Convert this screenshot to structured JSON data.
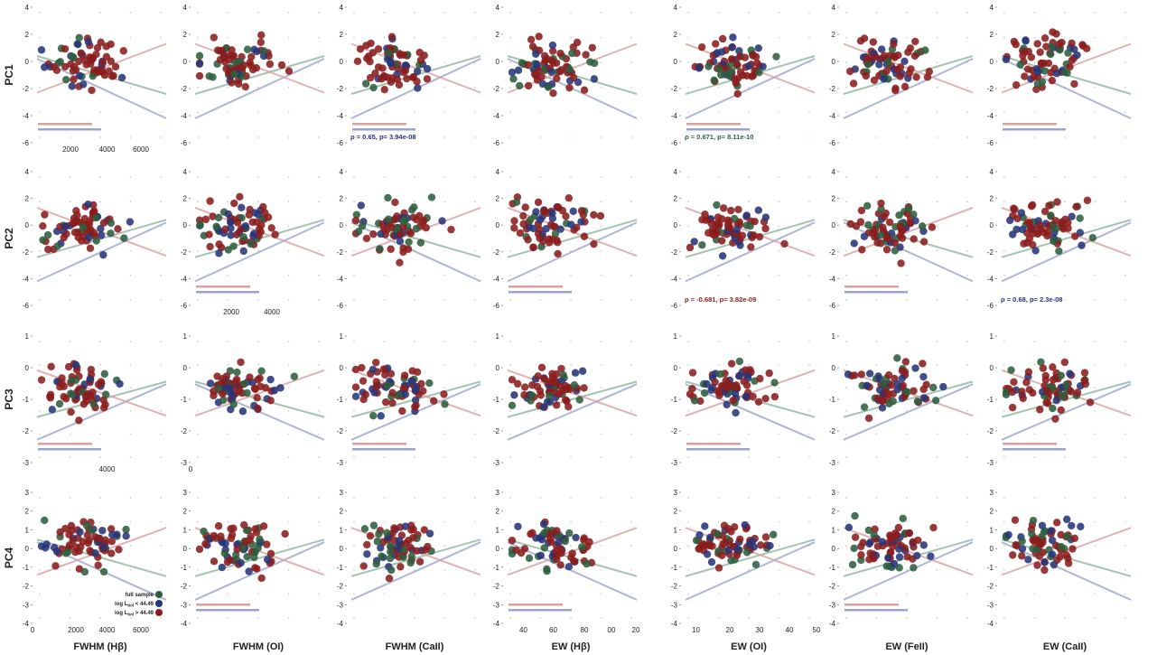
{
  "colors": {
    "full": "#2e5e3e",
    "low": "#28357a",
    "high": "#8b1c1c",
    "full_light": "#8fb5a0",
    "low_light": "#9aa5cc",
    "high_light": "#d9a0a0"
  },
  "legend": {
    "full": "full sample",
    "low": "log L",
    "low_sub": "bol",
    "low_suffix": " < 44.49",
    "high": "log L",
    "high_sub": "bol",
    "high_suffix": " > 44.49"
  },
  "chart_data": {
    "type": "scatter",
    "rows": [
      "PC1",
      "PC2",
      "PC3",
      "PC4"
    ],
    "columns": [
      "FWHM (Hβ)",
      "FWHM (OI)",
      "FWHM (CaII)",
      "EW (Hβ)",
      "EW (OI)",
      "EW (FeII)",
      "EW (CaII)"
    ],
    "row_yticks": [
      [
        "4",
        "2",
        "0",
        "-2",
        "-4",
        "-6"
      ],
      [
        "4",
        "2",
        "0",
        "-2",
        "-4",
        "-6"
      ],
      [
        "1",
        "0",
        "-1",
        "-2",
        "-3"
      ],
      [
        "3",
        "2",
        "1",
        "0",
        "-1",
        "-2",
        "-3",
        "-4"
      ]
    ],
    "row_ylim": [
      [
        -6,
        4
      ],
      [
        -6,
        4
      ],
      [
        -3,
        2
      ],
      [
        -4,
        3
      ]
    ],
    "xtick_labels": [
      {
        "row": 0,
        "col": 0,
        "labels": [
          [
            "2000",
            0.28
          ],
          [
            "4000",
            0.55
          ],
          [
            "6000",
            0.8
          ]
        ]
      },
      {
        "row": 1,
        "col": 1,
        "labels": [
          [
            "2000",
            0.3
          ],
          [
            "4000",
            0.6
          ]
        ]
      },
      {
        "row": 2,
        "col": 0,
        "labels": [
          [
            "4000",
            0.55
          ]
        ]
      },
      {
        "row": 2,
        "col": 1,
        "labels": [
          [
            "0",
            0.0
          ]
        ]
      },
      {
        "row": 3,
        "col": 0,
        "labels": [
          [
            "0",
            0.0
          ],
          [
            "2000",
            0.32
          ],
          [
            "4000",
            0.55
          ],
          [
            "6000",
            0.8
          ]
        ]
      },
      {
        "row": 3,
        "col": 3,
        "labels": [
          [
            "40",
            0.15
          ],
          [
            "60",
            0.37
          ],
          [
            "80",
            0.6
          ],
          [
            "00",
            0.8
          ],
          [
            "20",
            0.98
          ]
        ]
      },
      {
        "row": 3,
        "col": 4,
        "labels": [
          [
            "10",
            0.11
          ],
          [
            "20",
            0.36
          ],
          [
            "30",
            0.58
          ],
          [
            "40",
            0.8
          ],
          [
            "50",
            1.0
          ]
        ]
      }
    ],
    "annotations": [
      {
        "row": 0,
        "col": 2,
        "text": "ρ = 0.65, p= 3.94e-08",
        "color": "low"
      },
      {
        "row": 0,
        "col": 4,
        "text": "ρ = 0.671, p= 8.11e-10",
        "color": "full"
      },
      {
        "row": 1,
        "col": 4,
        "text": "ρ = -0.681, p= 3.82e-09",
        "color": "high"
      },
      {
        "row": 1,
        "col": 6,
        "text": "ρ = 0.68, p= 2.3e-08",
        "color": "low"
      }
    ],
    "series": [
      "full sample",
      "log Lbol < 44.49",
      "log Lbol > 44.49"
    ]
  }
}
